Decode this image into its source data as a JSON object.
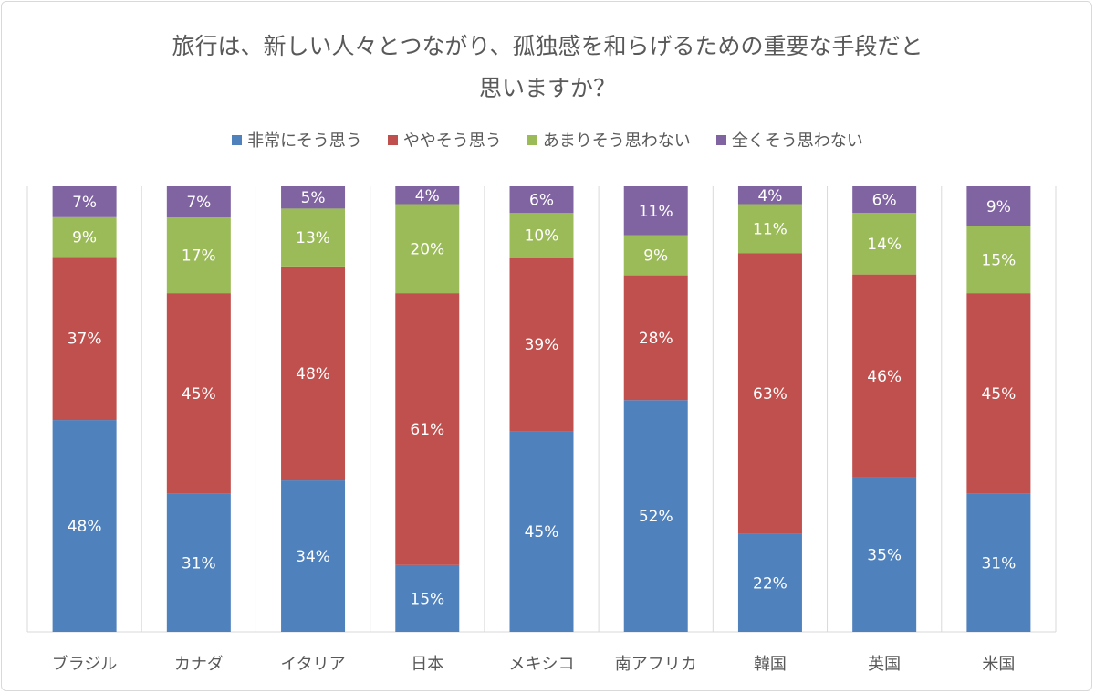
{
  "chart_data": {
    "type": "bar",
    "stacked": true,
    "normalized_100_percent": true,
    "title": "旅行は、新しい人々とつながり、孤独感を和らげるための重要な手段だと\n思いますか？",
    "categories": [
      "ブラジル",
      "カナダ",
      "イタリア",
      "日本",
      "メキシコ",
      "南アフリカ",
      "韓国",
      "英国",
      "米国"
    ],
    "series": [
      {
        "name": "非常にそう思う",
        "color": "#4f81bd",
        "values": [
          48,
          31,
          34,
          15,
          45,
          52,
          22,
          35,
          31
        ]
      },
      {
        "name": "ややそう思う",
        "color": "#c0504d",
        "values": [
          37,
          45,
          48,
          61,
          39,
          28,
          63,
          46,
          45
        ]
      },
      {
        "name": "あまりそう思わない",
        "color": "#9bbb59",
        "values": [
          9,
          17,
          13,
          20,
          10,
          9,
          11,
          14,
          15
        ]
      },
      {
        "name": "全くそう思わない",
        "color": "#8064a2",
        "values": [
          7,
          7,
          5,
          4,
          6,
          11,
          4,
          6,
          9
        ]
      }
    ],
    "value_suffix": "%",
    "legend_position": "top",
    "grid": "vertical category separators",
    "y_axis_visible": false
  }
}
